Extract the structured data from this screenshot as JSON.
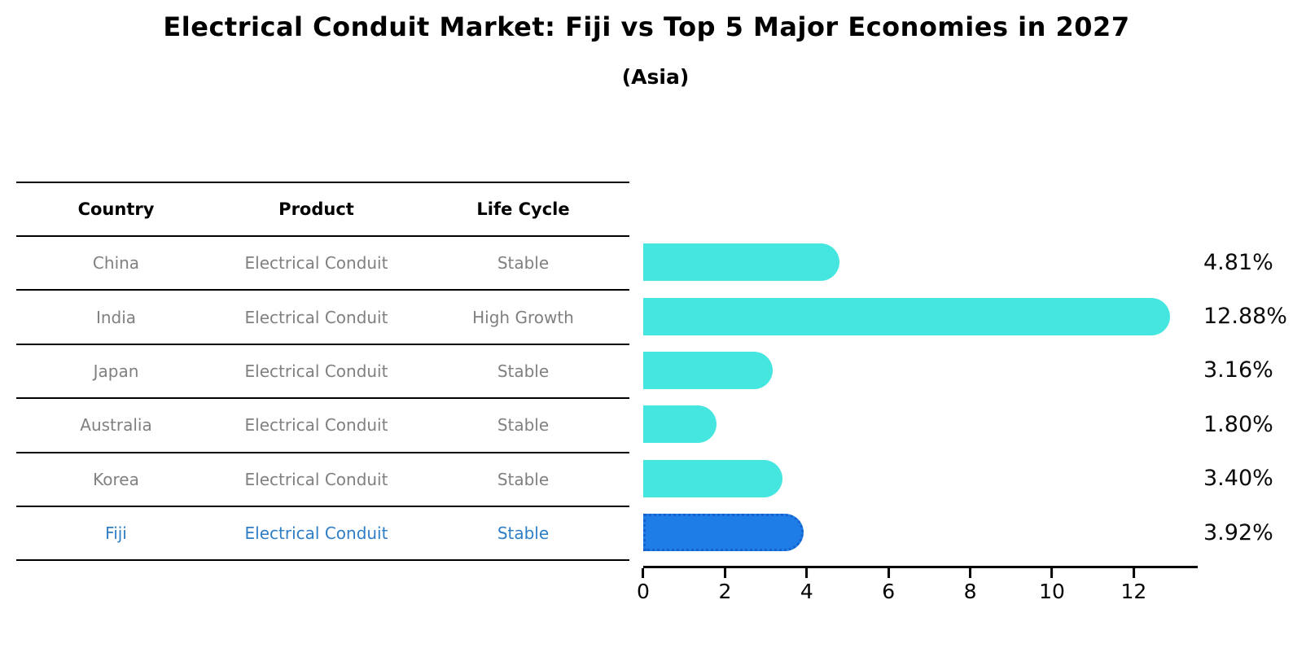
{
  "title": "Electrical Conduit Market: Fiji vs Top 5 Major Economies in 2027",
  "subtitle": "(Asia)",
  "table": {
    "headers": {
      "country": "Country",
      "product": "Product",
      "life_cycle": "Life Cycle"
    },
    "rows": [
      {
        "country": "China",
        "product": "Electrical Conduit",
        "life_cycle": "Stable",
        "highlight": false
      },
      {
        "country": "India",
        "product": "Electrical Conduit",
        "life_cycle": "High Growth",
        "highlight": false
      },
      {
        "country": "Japan",
        "product": "Electrical Conduit",
        "life_cycle": "Stable",
        "highlight": false
      },
      {
        "country": "Australia",
        "product": "Electrical Conduit",
        "life_cycle": "Stable",
        "highlight": false
      },
      {
        "country": "Korea",
        "product": "Electrical Conduit",
        "life_cycle": "Stable",
        "highlight": false
      },
      {
        "country": "Fiji",
        "product": "Electrical Conduit",
        "life_cycle": "Stable",
        "highlight": true
      }
    ]
  },
  "chart_data": {
    "type": "bar",
    "orientation": "horizontal",
    "title": "Electrical Conduit Market: Fiji vs Top 5 Major Economies in 2027",
    "subtitle": "(Asia)",
    "categories": [
      "China",
      "India",
      "Japan",
      "Australia",
      "Korea",
      "Fiji"
    ],
    "values": [
      4.81,
      12.88,
      3.16,
      1.8,
      3.4,
      3.92
    ],
    "value_labels": [
      "4.81%",
      "12.88%",
      "3.16%",
      "1.80%",
      "3.40%",
      "3.92%"
    ],
    "x_ticks": [
      0,
      2,
      4,
      6,
      8,
      10,
      12
    ],
    "xlim": [
      0,
      13.55
    ],
    "xlabel": "",
    "ylabel": "",
    "grid": false,
    "legend": false,
    "highlight_index": 5,
    "highlight_category": "Fiji"
  },
  "colors": {
    "bar": "#45E5E0",
    "highlight_bar": "#1E7DE6",
    "highlight_border": "#1661CE",
    "highlight_text": "#2E7EC6",
    "row_text": "#808080",
    "header_text": "#000000",
    "axis": "#000000",
    "background": "#FFFFFF"
  }
}
